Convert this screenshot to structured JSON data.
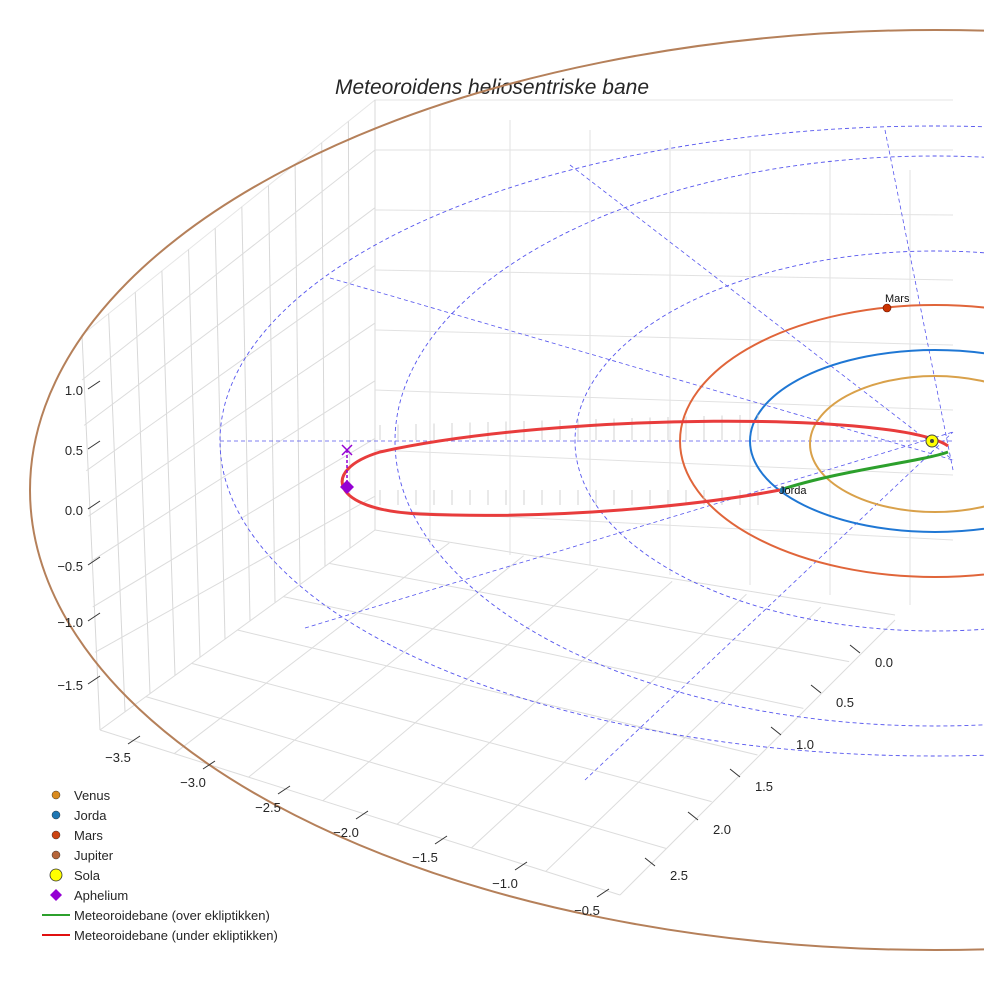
{
  "chart_data": {
    "type": "line",
    "projection": "3d",
    "title": "Meteoroidens heliosentriske bane",
    "axes": {
      "x": {
        "range": [
          -3.8,
          -0.3
        ],
        "ticks": [
          -3.5,
          -3.0,
          -2.5,
          -2.0,
          -1.5,
          -1.0,
          -0.5
        ],
        "labels": [
          "−3.5",
          "−3.0",
          "−2.5",
          "−2.0",
          "−1.5",
          "−1.0",
          "−0.5"
        ]
      },
      "y": {
        "range": [
          -0.3,
          2.8
        ],
        "ticks": [
          0.0,
          0.5,
          1.0,
          1.5,
          2.0,
          2.5
        ],
        "labels": [
          "0.0",
          "0.5",
          "1.0",
          "1.5",
          "2.0",
          "2.5"
        ]
      },
      "z": {
        "range": [
          -1.8,
          1.3
        ],
        "ticks": [
          -1.5,
          -1.0,
          -0.5,
          0.0,
          0.5,
          1.0
        ],
        "labels": [
          "−1.5",
          "−1.0",
          "−0.5",
          "0.0",
          "0.5",
          "1.0"
        ]
      },
      "grid": true
    },
    "series": [
      {
        "name": "Venus",
        "kind": "orbit",
        "radius_au": 0.72,
        "color": "#d9a14a"
      },
      {
        "name": "Jorda",
        "kind": "orbit",
        "radius_au": 1.0,
        "color": "#1f77d4"
      },
      {
        "name": "Mars",
        "kind": "orbit",
        "radius_au": 1.52,
        "color": "#e0653a"
      },
      {
        "name": "Jupiter",
        "kind": "orbit",
        "radius_au": 5.2,
        "color": "#b5805a"
      },
      {
        "name": "Meteoroidebane (over ekliptikken)",
        "color": "green"
      },
      {
        "name": "Meteoroidebane (under ekliptikken)",
        "color": "red"
      }
    ],
    "points": [
      {
        "name": "Sola",
        "color": "yellow"
      },
      {
        "name": "Aphelium",
        "color": "#9400d3"
      },
      {
        "name": "Mars",
        "label": "Mars",
        "color": "#cc3300"
      },
      {
        "name": "Jorda",
        "label": "Jorda",
        "color": "#1f77b4"
      }
    ],
    "legend": {
      "position": "bottom-left",
      "entries": [
        {
          "label": "Venus",
          "marker": "dot",
          "color": "#d98a1e"
        },
        {
          "label": "Jorda",
          "marker": "dot",
          "color": "#1f77b4"
        },
        {
          "label": "Mars",
          "marker": "dot",
          "color": "#cc4411"
        },
        {
          "label": "Jupiter",
          "marker": "dot",
          "color": "#b5653a"
        },
        {
          "label": "Sola",
          "marker": "bigdot",
          "color": "#ffff00"
        },
        {
          "label": "Aphelium",
          "marker": "diamond",
          "color": "#9400d3"
        },
        {
          "label": "Meteoroidebane (over ekliptikken)",
          "marker": "line",
          "color": "#2ca02c"
        },
        {
          "label": "Meteoroidebane (under ekliptikken)",
          "marker": "line",
          "color": "#e01010"
        }
      ]
    }
  }
}
